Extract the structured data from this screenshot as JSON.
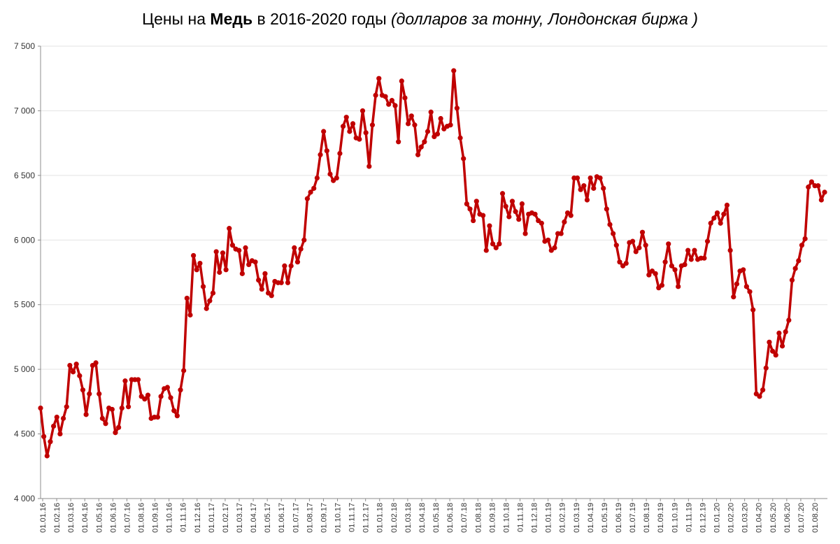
{
  "chart_data": {
    "type": "line",
    "title": {
      "prefix": "Цены на ",
      "bold": "Медь",
      "middle": " в 2016-2020 годы ",
      "italic": "(долларов за тонну, Лондонская биржа )"
    },
    "xlabel": "",
    "ylabel": "",
    "ylim": [
      4000,
      7500
    ],
    "y_ticks": [
      {
        "value": 4000,
        "label": "4 000"
      },
      {
        "value": 4500,
        "label": "4 500"
      },
      {
        "value": 5000,
        "label": "5 000"
      },
      {
        "value": 5500,
        "label": "5 500"
      },
      {
        "value": 6000,
        "label": "6 000"
      },
      {
        "value": 6500,
        "label": "6 500"
      },
      {
        "value": 7000,
        "label": "7 000"
      },
      {
        "value": 7500,
        "label": "7 500"
      }
    ],
    "x_tick_labels": [
      "01.01.16",
      "01.02.16",
      "01.03.16",
      "01.04.16",
      "01.05.16",
      "01.06.16",
      "01.07.16",
      "01.08.16",
      "01.09.16",
      "01.10.16",
      "01.11.16",
      "01.12.16",
      "01.01.17",
      "01.02.17",
      "01.03.17",
      "01.04.17",
      "01.05.17",
      "01.06.17",
      "01.07.17",
      "01.08.17",
      "01.09.17",
      "01.10.17",
      "01.11.17",
      "01.12.17",
      "01.01.18",
      "01.02.18",
      "01.03.18",
      "01.04.18",
      "01.05.18",
      "01.06.18",
      "01.07.18",
      "01.08.18",
      "01.09.18",
      "01.10.18",
      "01.11.18",
      "01.12.18",
      "01.01.19",
      "01.02.19",
      "01.03.19",
      "01.04.19",
      "01.05.19",
      "01.06.19",
      "01.07.19",
      "01.08.19",
      "01.09.19",
      "01.10.19",
      "01.11.19",
      "01.12.19",
      "01.01.20",
      "01.02.20",
      "01.03.20",
      "01.04.20",
      "01.05.20",
      "01.06.20",
      "01.07.20",
      "01.08.20"
    ],
    "grid": {
      "horizontal": true,
      "vertical": false
    },
    "legend": "none",
    "series": [
      {
        "color": "#c00000",
        "values": [
          4700,
          4480,
          4330,
          4440,
          4560,
          4630,
          4500,
          4620,
          4710,
          5030,
          4980,
          5040,
          4950,
          4840,
          4650,
          4810,
          5030,
          5050,
          4810,
          4620,
          4580,
          4700,
          4690,
          4510,
          4550,
          4700,
          4910,
          4710,
          4920,
          4920,
          4920,
          4790,
          4770,
          4800,
          4620,
          4630,
          4630,
          4790,
          4850,
          4860,
          4780,
          4680,
          4640,
          4840,
          4990,
          5550,
          5420,
          5880,
          5770,
          5820,
          5640,
          5470,
          5530,
          5590,
          5910,
          5750,
          5900,
          5770,
          6090,
          5960,
          5930,
          5920,
          5740,
          5940,
          5810,
          5840,
          5830,
          5690,
          5620,
          5740,
          5590,
          5570,
          5680,
          5670,
          5670,
          5800,
          5670,
          5800,
          5940,
          5830,
          5930,
          6000,
          6320,
          6370,
          6400,
          6480,
          6660,
          6840,
          6690,
          6510,
          6460,
          6480,
          6670,
          6880,
          6950,
          6840,
          6900,
          6790,
          6780,
          7000,
          6830,
          6570,
          6890,
          7120,
          7250,
          7120,
          7110,
          7050,
          7080,
          7040,
          6760,
          7230,
          7100,
          6900,
          6960,
          6890,
          6660,
          6720,
          6760,
          6840,
          6990,
          6800,
          6820,
          6940,
          6860,
          6880,
          6890,
          7310,
          7020,
          6790,
          6630,
          6280,
          6240,
          6150,
          6300,
          6200,
          6190,
          5920,
          6110,
          5970,
          5940,
          5970,
          6360,
          6260,
          6180,
          6300,
          6220,
          6160,
          6280,
          6050,
          6200,
          6210,
          6200,
          6150,
          6130,
          5990,
          6000,
          5920,
          5940,
          6050,
          6050,
          6140,
          6210,
          6190,
          6480,
          6480,
          6390,
          6420,
          6310,
          6480,
          6400,
          6490,
          6480,
          6400,
          6240,
          6120,
          6050,
          5960,
          5830,
          5800,
          5820,
          5980,
          5990,
          5910,
          5940,
          6060,
          5960,
          5730,
          5760,
          5740,
          5630,
          5650,
          5830,
          5970,
          5800,
          5770,
          5640,
          5800,
          5810,
          5920,
          5850,
          5920,
          5850,
          5860,
          5860,
          5990,
          6130,
          6170,
          6210,
          6130,
          6200,
          6270,
          5920,
          5560,
          5660,
          5760,
          5770,
          5640,
          5600,
          5460,
          4810,
          4790,
          4840,
          5010,
          5210,
          5140,
          5110,
          5280,
          5180,
          5290,
          5380,
          5690,
          5780,
          5840,
          5960,
          6010,
          6410,
          6450,
          6420,
          6420,
          6310,
          6370
        ]
      }
    ]
  }
}
